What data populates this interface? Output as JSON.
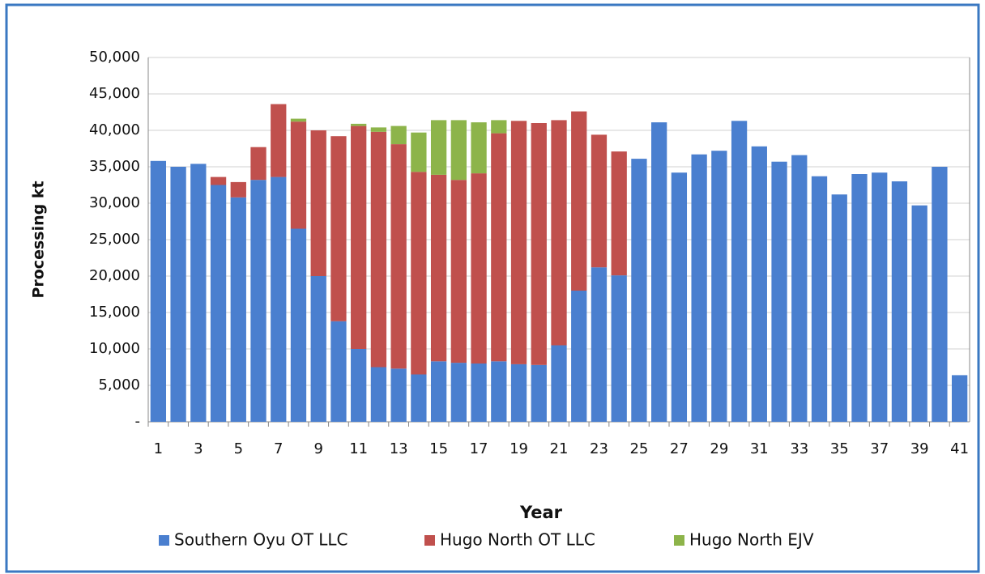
{
  "chart_data": {
    "type": "stacked_bar",
    "y_label": "Processing kt",
    "x_label": "Year",
    "categories": [
      "1",
      null,
      "3",
      null,
      "5",
      null,
      "7",
      null,
      "9",
      null,
      "11",
      null,
      "13",
      null,
      "15",
      null,
      "17",
      null,
      "19",
      null,
      "21",
      null,
      "23",
      null,
      "25",
      null,
      "27",
      null,
      "29",
      null,
      "31",
      null,
      "33",
      null,
      "35",
      null,
      "37",
      null,
      "39",
      null,
      "41"
    ],
    "series": [
      {
        "name": "Southern Oyu OT LLC",
        "color": "#4a7fcf",
        "values": [
          35800,
          35000,
          35400,
          32500,
          30800,
          33200,
          33600,
          26500,
          20000,
          13800,
          10000,
          7500,
          7300,
          6500,
          8300,
          8100,
          8000,
          8300,
          7900,
          7800,
          10500,
          18000,
          21200,
          20100,
          36100,
          41100,
          34200,
          36700,
          37200,
          41300,
          37800,
          35700,
          36600,
          33700,
          31200,
          34000,
          34200,
          33000,
          29700,
          35000,
          6400
        ]
      },
      {
        "name": "Hugo North OT LLC",
        "color": "#c0504d",
        "values": [
          null,
          null,
          null,
          1100,
          2100,
          4500,
          10000,
          14700,
          20000,
          25400,
          30600,
          32300,
          30800,
          27800,
          25600,
          25100,
          26100,
          31300,
          33400,
          33200,
          30900,
          24600,
          18200,
          17000,
          null,
          null,
          null,
          null,
          null,
          null,
          null,
          null,
          null,
          null,
          null,
          null,
          null,
          null,
          null,
          null,
          null
        ]
      },
      {
        "name": "Hugo North EJV",
        "color": "#8db44a",
        "values": [
          null,
          null,
          null,
          null,
          null,
          null,
          null,
          400,
          null,
          null,
          300,
          600,
          2500,
          5400,
          7500,
          8200,
          7000,
          1800,
          null,
          null,
          null,
          null,
          null,
          null,
          null,
          null,
          null,
          null,
          null,
          null,
          null,
          null,
          null,
          null,
          null,
          null,
          null,
          null,
          null,
          null,
          null
        ]
      }
    ],
    "ylim": [
      0,
      50000
    ],
    "yticks": [
      {
        "value": 0,
        "label": "-"
      },
      {
        "value": 5000,
        "label": "5,000"
      },
      {
        "value": 10000,
        "label": "10,000"
      },
      {
        "value": 15000,
        "label": "15,000"
      },
      {
        "value": 20000,
        "label": "20,000"
      },
      {
        "value": 25000,
        "label": "25,000"
      },
      {
        "value": 30000,
        "label": "30,000"
      },
      {
        "value": 35000,
        "label": "35,000"
      },
      {
        "value": 40000,
        "label": "40,000"
      },
      {
        "value": 45000,
        "label": "45,000"
      },
      {
        "value": 50000,
        "label": "50,000"
      }
    ],
    "grid": true
  }
}
